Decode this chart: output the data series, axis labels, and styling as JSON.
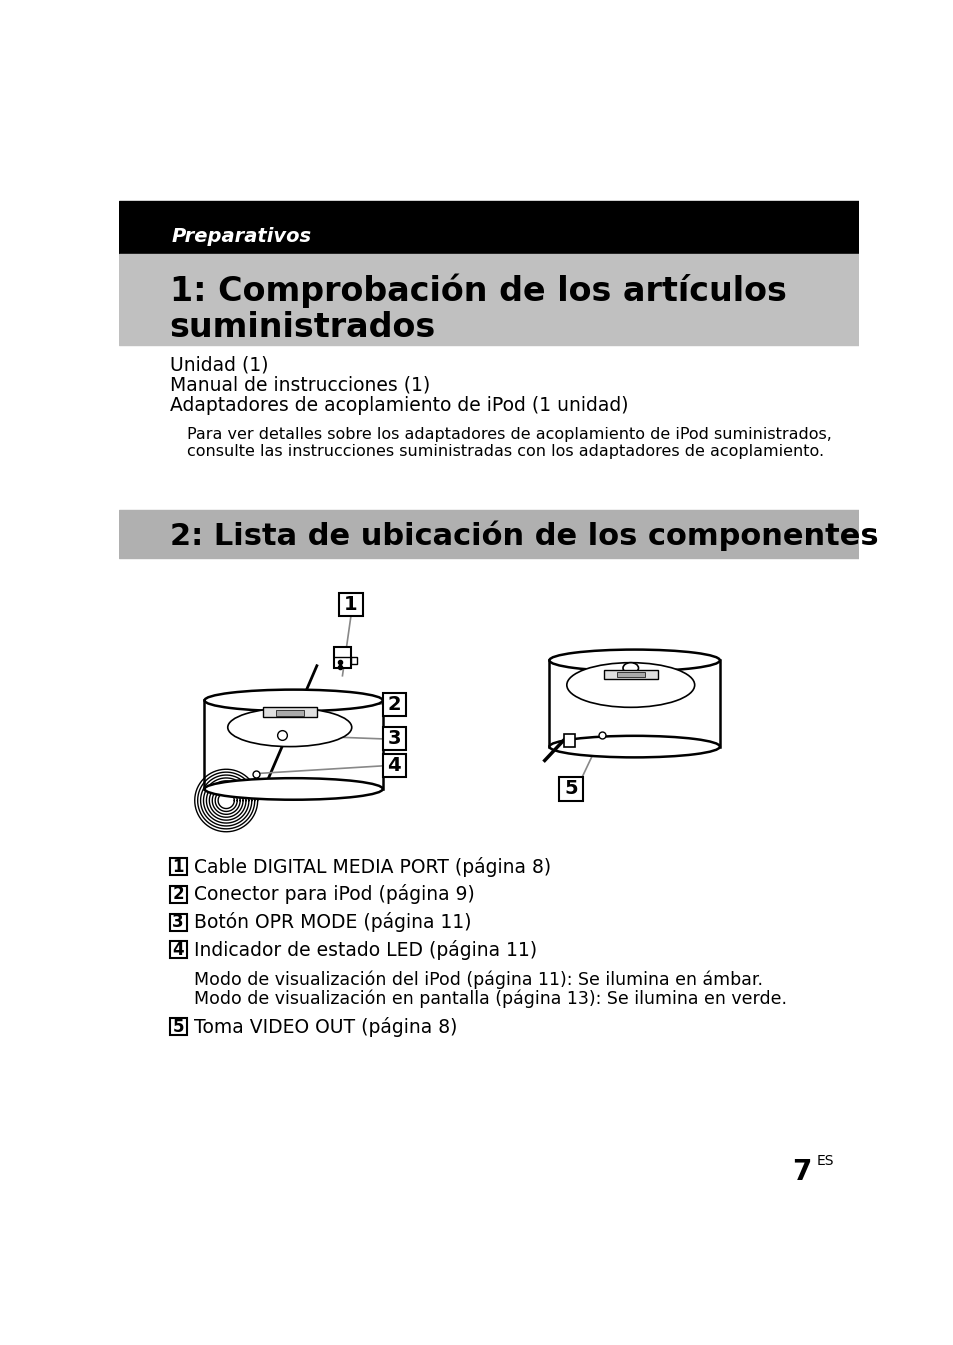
{
  "page_bg": "#ffffff",
  "black_bar_color": "#000000",
  "gray_bar1_color": "#c0c0c0",
  "gray_bar2_color": "#b0b0b0",
  "white_text": "#ffffff",
  "black_text": "#000000",
  "preparativos_text": "Preparativos",
  "section1_title_line1": "1: Comprobación de los artículos",
  "section1_title_line2": "suministrados",
  "body_lines": [
    "Unidad (1)",
    "Manual de instrucciones (1)",
    "Adaptadores de acoplamiento de iPod (1 unidad)"
  ],
  "small_text_line1": "Para ver detalles sobre los adaptadores de acoplamiento de iPod suministrados,",
  "small_text_line2": "consulte las instrucciones suministradas con los adaptadores de acoplamiento.",
  "section2_title": "2: Lista de ubicación de los componentes",
  "legend_items": [
    {
      "num": "1",
      "text": "Cable DIGITAL MEDIA PORT (página 8)"
    },
    {
      "num": "2",
      "text": "Conector para iPod (página 9)"
    },
    {
      "num": "3",
      "text": "Botón OPR MODE (página 11)"
    },
    {
      "num": "4",
      "text": "Indicador de estado LED (página 11)"
    }
  ],
  "sub_text_1": "Modo de visualización del iPod (página 11): Se ilumina en ámbar.",
  "sub_text_2": "Modo de visualización en pantalla (página 13): Se ilumina en verde.",
  "legend_item5": {
    "num": "5",
    "text": "Toma VIDEO OUT (página 8)"
  },
  "page_num": "7",
  "page_num_super": "ES"
}
